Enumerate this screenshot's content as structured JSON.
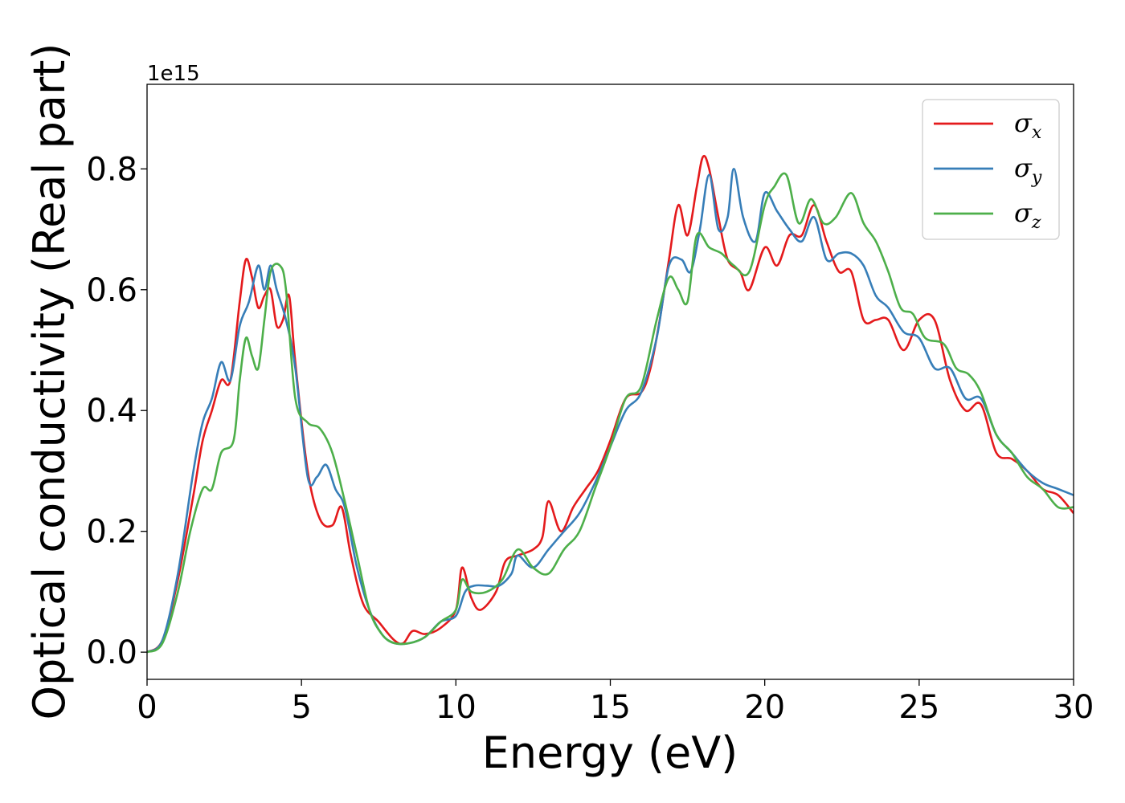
{
  "chart_data": {
    "type": "line",
    "xlabel": "Energy (eV)",
    "ylabel": "Optical conductivity (Real part)",
    "y_offset_text": "1e15",
    "xlim": [
      0,
      30
    ],
    "ylim": [
      -0.045,
      0.94
    ],
    "x_ticks": [
      0,
      5,
      10,
      15,
      20,
      25,
      30
    ],
    "y_ticks": [
      0.0,
      0.2,
      0.4,
      0.6,
      0.8
    ],
    "grid": false,
    "legend_position": "top-right",
    "series": [
      {
        "name": "σx",
        "symbol": "σ",
        "subscript": "x",
        "color": "#e41a1c",
        "points": [
          [
            0,
            0
          ],
          [
            0.5,
            0.02
          ],
          [
            1,
            0.12
          ],
          [
            1.5,
            0.26
          ],
          [
            1.8,
            0.35
          ],
          [
            2.1,
            0.4
          ],
          [
            2.4,
            0.45
          ],
          [
            2.7,
            0.45
          ],
          [
            3,
            0.58
          ],
          [
            3.2,
            0.65
          ],
          [
            3.4,
            0.62
          ],
          [
            3.6,
            0.57
          ],
          [
            3.8,
            0.59
          ],
          [
            4,
            0.6
          ],
          [
            4.2,
            0.54
          ],
          [
            4.4,
            0.55
          ],
          [
            4.6,
            0.59
          ],
          [
            4.8,
            0.48
          ],
          [
            5.2,
            0.3
          ],
          [
            5.6,
            0.22
          ],
          [
            6,
            0.21
          ],
          [
            6.3,
            0.24
          ],
          [
            6.6,
            0.16
          ],
          [
            7,
            0.08
          ],
          [
            7.5,
            0.05
          ],
          [
            8,
            0.02
          ],
          [
            8.3,
            0.015
          ],
          [
            8.6,
            0.035
          ],
          [
            9,
            0.03
          ],
          [
            9.5,
            0.04
          ],
          [
            10,
            0.07
          ],
          [
            10.2,
            0.14
          ],
          [
            10.5,
            0.09
          ],
          [
            10.8,
            0.07
          ],
          [
            11.3,
            0.1
          ],
          [
            11.6,
            0.15
          ],
          [
            12,
            0.16
          ],
          [
            12.5,
            0.17
          ],
          [
            12.8,
            0.19
          ],
          [
            13,
            0.25
          ],
          [
            13.4,
            0.2
          ],
          [
            13.8,
            0.24
          ],
          [
            14.2,
            0.27
          ],
          [
            14.6,
            0.3
          ],
          [
            15,
            0.35
          ],
          [
            15.5,
            0.42
          ],
          [
            16,
            0.43
          ],
          [
            16.3,
            0.47
          ],
          [
            16.6,
            0.55
          ],
          [
            16.9,
            0.65
          ],
          [
            17.2,
            0.74
          ],
          [
            17.5,
            0.69
          ],
          [
            17.8,
            0.77
          ],
          [
            18,
            0.82
          ],
          [
            18.2,
            0.8
          ],
          [
            18.5,
            0.72
          ],
          [
            18.8,
            0.65
          ],
          [
            19.2,
            0.63
          ],
          [
            19.5,
            0.6
          ],
          [
            20,
            0.67
          ],
          [
            20.4,
            0.64
          ],
          [
            20.8,
            0.69
          ],
          [
            21.2,
            0.69
          ],
          [
            21.6,
            0.74
          ],
          [
            22,
            0.68
          ],
          [
            22.4,
            0.63
          ],
          [
            22.8,
            0.63
          ],
          [
            23.2,
            0.55
          ],
          [
            23.6,
            0.55
          ],
          [
            24,
            0.55
          ],
          [
            24.5,
            0.5
          ],
          [
            25,
            0.55
          ],
          [
            25.5,
            0.55
          ],
          [
            26,
            0.45
          ],
          [
            26.5,
            0.4
          ],
          [
            27,
            0.41
          ],
          [
            27.5,
            0.33
          ],
          [
            28,
            0.32
          ],
          [
            28.5,
            0.3
          ],
          [
            29,
            0.27
          ],
          [
            29.5,
            0.26
          ],
          [
            30,
            0.23
          ]
        ]
      },
      {
        "name": "σy",
        "symbol": "σ",
        "subscript": "y",
        "color": "#377eb8",
        "points": [
          [
            0,
            0
          ],
          [
            0.5,
            0.02
          ],
          [
            1,
            0.13
          ],
          [
            1.5,
            0.3
          ],
          [
            1.8,
            0.38
          ],
          [
            2.1,
            0.42
          ],
          [
            2.4,
            0.48
          ],
          [
            2.7,
            0.45
          ],
          [
            3,
            0.54
          ],
          [
            3.3,
            0.58
          ],
          [
            3.6,
            0.64
          ],
          [
            3.8,
            0.6
          ],
          [
            4,
            0.64
          ],
          [
            4.2,
            0.6
          ],
          [
            4.5,
            0.55
          ],
          [
            4.8,
            0.47
          ],
          [
            5.2,
            0.29
          ],
          [
            5.5,
            0.29
          ],
          [
            5.8,
            0.31
          ],
          [
            6.1,
            0.27
          ],
          [
            6.4,
            0.24
          ],
          [
            6.8,
            0.14
          ],
          [
            7.2,
            0.07
          ],
          [
            7.6,
            0.03
          ],
          [
            8,
            0.015
          ],
          [
            8.5,
            0.015
          ],
          [
            9,
            0.025
          ],
          [
            9.5,
            0.05
          ],
          [
            10,
            0.06
          ],
          [
            10.3,
            0.1
          ],
          [
            10.6,
            0.11
          ],
          [
            11,
            0.11
          ],
          [
            11.4,
            0.11
          ],
          [
            11.8,
            0.13
          ],
          [
            12,
            0.16
          ],
          [
            12.5,
            0.14
          ],
          [
            13,
            0.17
          ],
          [
            13.5,
            0.2
          ],
          [
            14,
            0.23
          ],
          [
            14.5,
            0.28
          ],
          [
            15,
            0.34
          ],
          [
            15.5,
            0.4
          ],
          [
            16,
            0.43
          ],
          [
            16.5,
            0.52
          ],
          [
            16.9,
            0.64
          ],
          [
            17.3,
            0.65
          ],
          [
            17.6,
            0.63
          ],
          [
            17.9,
            0.7
          ],
          [
            18.2,
            0.79
          ],
          [
            18.5,
            0.7
          ],
          [
            18.8,
            0.72
          ],
          [
            19,
            0.8
          ],
          [
            19.3,
            0.72
          ],
          [
            19.7,
            0.68
          ],
          [
            20,
            0.76
          ],
          [
            20.4,
            0.73
          ],
          [
            20.8,
            0.7
          ],
          [
            21.2,
            0.68
          ],
          [
            21.6,
            0.72
          ],
          [
            22,
            0.65
          ],
          [
            22.4,
            0.66
          ],
          [
            22.8,
            0.66
          ],
          [
            23.2,
            0.64
          ],
          [
            23.6,
            0.59
          ],
          [
            24,
            0.57
          ],
          [
            24.5,
            0.53
          ],
          [
            25,
            0.52
          ],
          [
            25.5,
            0.47
          ],
          [
            26,
            0.47
          ],
          [
            26.5,
            0.42
          ],
          [
            27,
            0.42
          ],
          [
            27.5,
            0.36
          ],
          [
            28,
            0.33
          ],
          [
            28.5,
            0.3
          ],
          [
            29,
            0.28
          ],
          [
            29.5,
            0.27
          ],
          [
            30,
            0.26
          ]
        ]
      },
      {
        "name": "σz",
        "symbol": "σ",
        "subscript": "z",
        "color": "#4daf4a",
        "points": [
          [
            0,
            0
          ],
          [
            0.5,
            0.015
          ],
          [
            1,
            0.1
          ],
          [
            1.4,
            0.2
          ],
          [
            1.8,
            0.27
          ],
          [
            2.1,
            0.27
          ],
          [
            2.4,
            0.33
          ],
          [
            2.8,
            0.35
          ],
          [
            3,
            0.45
          ],
          [
            3.2,
            0.52
          ],
          [
            3.4,
            0.49
          ],
          [
            3.6,
            0.47
          ],
          [
            3.8,
            0.55
          ],
          [
            4,
            0.63
          ],
          [
            4.3,
            0.64
          ],
          [
            4.5,
            0.6
          ],
          [
            4.8,
            0.42
          ],
          [
            5.2,
            0.38
          ],
          [
            5.6,
            0.37
          ],
          [
            6,
            0.33
          ],
          [
            6.4,
            0.25
          ],
          [
            6.8,
            0.16
          ],
          [
            7.2,
            0.07
          ],
          [
            7.6,
            0.03
          ],
          [
            8,
            0.015
          ],
          [
            8.5,
            0.015
          ],
          [
            9,
            0.025
          ],
          [
            9.5,
            0.05
          ],
          [
            10,
            0.07
          ],
          [
            10.2,
            0.12
          ],
          [
            10.5,
            0.1
          ],
          [
            11,
            0.1
          ],
          [
            11.5,
            0.12
          ],
          [
            12,
            0.17
          ],
          [
            12.5,
            0.14
          ],
          [
            13,
            0.13
          ],
          [
            13.5,
            0.17
          ],
          [
            14,
            0.2
          ],
          [
            14.5,
            0.27
          ],
          [
            15,
            0.34
          ],
          [
            15.5,
            0.42
          ],
          [
            16,
            0.44
          ],
          [
            16.5,
            0.55
          ],
          [
            16.9,
            0.62
          ],
          [
            17.2,
            0.6
          ],
          [
            17.5,
            0.58
          ],
          [
            17.8,
            0.69
          ],
          [
            18.2,
            0.67
          ],
          [
            18.6,
            0.66
          ],
          [
            19,
            0.64
          ],
          [
            19.5,
            0.63
          ],
          [
            20,
            0.74
          ],
          [
            20.3,
            0.77
          ],
          [
            20.7,
            0.79
          ],
          [
            21.1,
            0.71
          ],
          [
            21.5,
            0.75
          ],
          [
            21.9,
            0.71
          ],
          [
            22.3,
            0.72
          ],
          [
            22.8,
            0.76
          ],
          [
            23.2,
            0.71
          ],
          [
            23.6,
            0.68
          ],
          [
            24,
            0.63
          ],
          [
            24.4,
            0.57
          ],
          [
            24.8,
            0.56
          ],
          [
            25.2,
            0.52
          ],
          [
            25.8,
            0.51
          ],
          [
            26.2,
            0.47
          ],
          [
            26.6,
            0.46
          ],
          [
            27,
            0.43
          ],
          [
            27.5,
            0.36
          ],
          [
            28,
            0.33
          ],
          [
            28.5,
            0.29
          ],
          [
            29,
            0.27
          ],
          [
            29.5,
            0.24
          ],
          [
            30,
            0.24
          ]
        ]
      }
    ]
  }
}
